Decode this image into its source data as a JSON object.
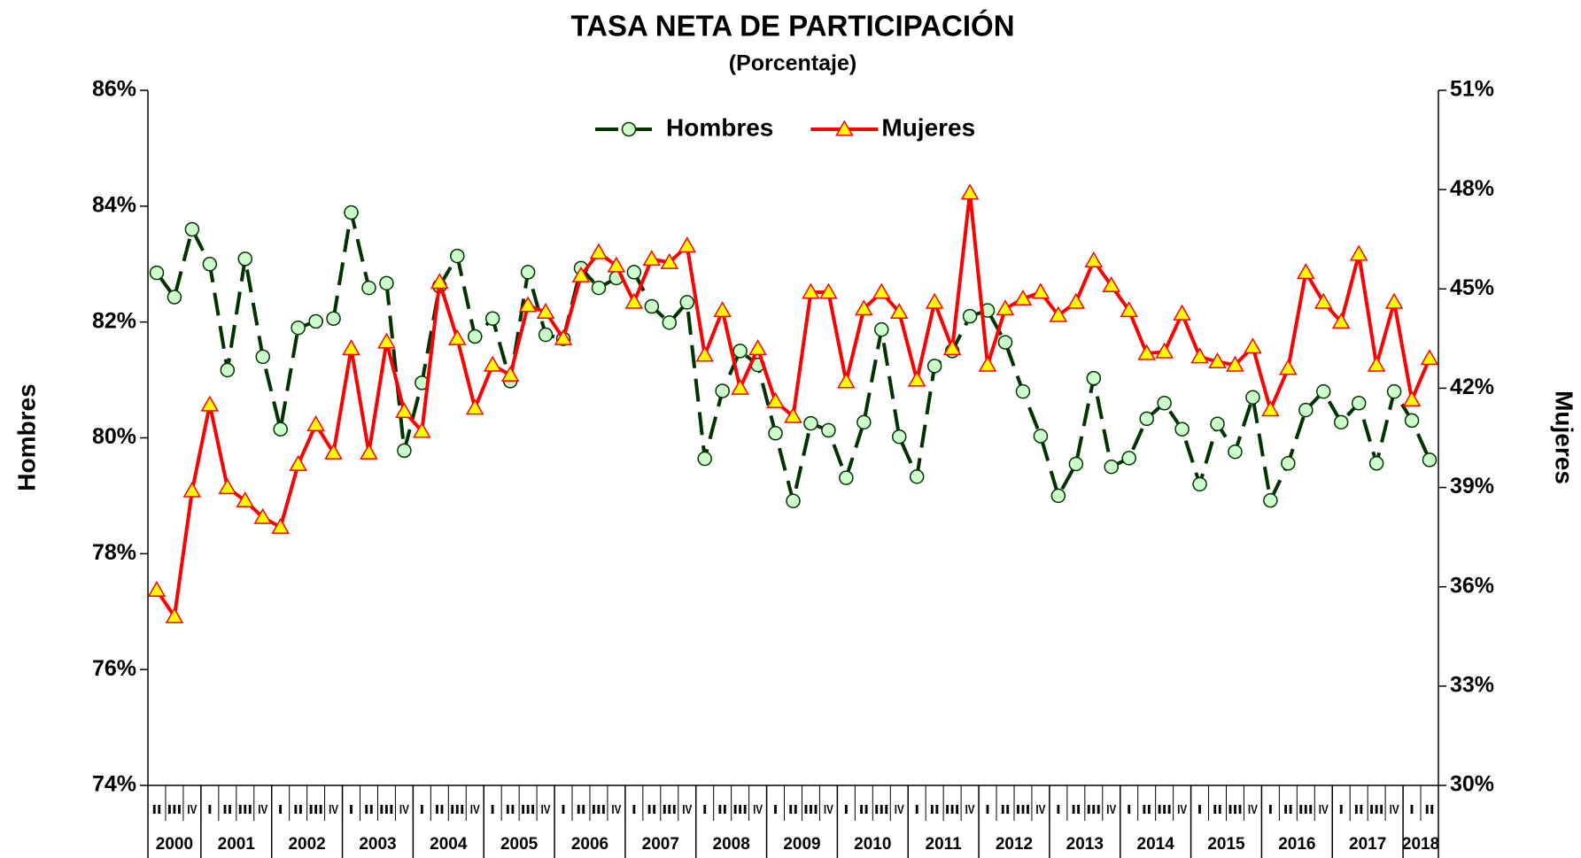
{
  "chart_data": {
    "type": "line",
    "title": "TASA NETA DE PARTICIPACIÓN",
    "subtitle": "(Porcentaje)",
    "y_label": "Hombres",
    "y2_label": "Mujeres",
    "categories": [
      "II",
      "III",
      "IV",
      "I",
      "II",
      "III",
      "IV",
      "I",
      "II",
      "III",
      "IV",
      "I",
      "II",
      "III",
      "IV",
      "I",
      "II",
      "III",
      "IV",
      "I",
      "II",
      "III",
      "IV",
      "I",
      "II",
      "III",
      "IV",
      "I",
      "II",
      "III",
      "IV",
      "I",
      "II",
      "III",
      "IV",
      "I",
      "II",
      "III",
      "IV",
      "I",
      "II",
      "III",
      "IV",
      "I",
      "II",
      "III",
      "IV",
      "I",
      "II",
      "III",
      "IV",
      "I",
      "II",
      "III",
      "IV",
      "I",
      "II",
      "III",
      "IV",
      "I",
      "II",
      "III",
      "IV",
      "I",
      "II",
      "III",
      "IV",
      "I",
      "II",
      "III",
      "IV",
      "I",
      "II"
    ],
    "years": [
      "2000",
      "2001",
      "2002",
      "2003",
      "2004",
      "2005",
      "2006",
      "2007",
      "2008",
      "2009",
      "2010",
      "2011",
      "2012",
      "2013",
      "2014",
      "2015",
      "2016",
      "2017",
      "2018"
    ],
    "ylim": [
      74,
      86
    ],
    "yticks": [
      {
        "value": 74,
        "label": "74%"
      },
      {
        "value": 76,
        "label": "76%"
      },
      {
        "value": 78,
        "label": "78%"
      },
      {
        "value": 80,
        "label": "80%"
      },
      {
        "value": 82,
        "label": "82%"
      },
      {
        "value": 84,
        "label": "84%"
      },
      {
        "value": 86,
        "label": "86%"
      }
    ],
    "y2lim": [
      30,
      51
    ],
    "y2ticks": [
      {
        "value": 30,
        "label": "30%"
      },
      {
        "value": 33,
        "label": "33%"
      },
      {
        "value": 36,
        "label": "36%"
      },
      {
        "value": 39,
        "label": "39%"
      },
      {
        "value": 42,
        "label": "42%"
      },
      {
        "value": 45,
        "label": "45%"
      },
      {
        "value": 48,
        "label": "48%"
      },
      {
        "value": 51,
        "label": "51%"
      }
    ],
    "grid": false,
    "legend": "top",
    "series": [
      {
        "name": "Hombres",
        "color": "#003300",
        "marker": "circle",
        "marker_color": "#ccffcc",
        "line_style": "dashed",
        "values": [
          82.85,
          82.43,
          83.6,
          83.0,
          81.17,
          83.09,
          81.4,
          80.15,
          81.9,
          82.01,
          82.06,
          83.89,
          82.59,
          82.67,
          79.78,
          80.95,
          82.62,
          83.14,
          81.75,
          82.06,
          80.98,
          82.86,
          81.78,
          81.71,
          82.93,
          82.59,
          82.76,
          82.86,
          82.27,
          81.99,
          82.34,
          79.64,
          80.81,
          81.5,
          81.26,
          80.08,
          78.91,
          80.25,
          80.13,
          79.31,
          80.27,
          81.87,
          80.02,
          79.33,
          81.24,
          81.5,
          82.1,
          82.2,
          81.65,
          80.8,
          80.03,
          79.0,
          79.55,
          81.03,
          79.5,
          79.65,
          80.33,
          80.6,
          80.15,
          79.2,
          80.24,
          79.76,
          80.7,
          78.92,
          79.56,
          80.48,
          80.8,
          80.27,
          80.6,
          79.56,
          80.8,
          80.3,
          79.62
        ]
      },
      {
        "name": "Mujeres",
        "color": "#ff0000",
        "marker": "triangle",
        "marker_color": "#ffff00",
        "line_style": "solid",
        "axis": "y2",
        "values": [
          35.9,
          35.1,
          38.9,
          41.5,
          39.0,
          38.6,
          38.1,
          37.8,
          39.7,
          40.9,
          40.05,
          43.2,
          40.05,
          43.4,
          41.3,
          40.7,
          45.2,
          43.5,
          41.4,
          42.7,
          42.4,
          44.5,
          44.3,
          43.5,
          45.4,
          46.1,
          45.7,
          44.6,
          45.9,
          45.8,
          46.3,
          43.0,
          44.35,
          42.0,
          43.2,
          41.6,
          41.15,
          44.9,
          44.9,
          42.2,
          44.4,
          44.9,
          44.3,
          42.25,
          44.6,
          43.2,
          47.9,
          42.7,
          44.4,
          44.7,
          44.9,
          44.2,
          44.6,
          45.85,
          45.1,
          44.35,
          43.05,
          43.1,
          44.25,
          42.95,
          42.8,
          42.7,
          43.25,
          41.35,
          42.6,
          45.5,
          44.6,
          44.0,
          46.05,
          42.7,
          44.6,
          41.65,
          42.9
        ]
      }
    ]
  }
}
